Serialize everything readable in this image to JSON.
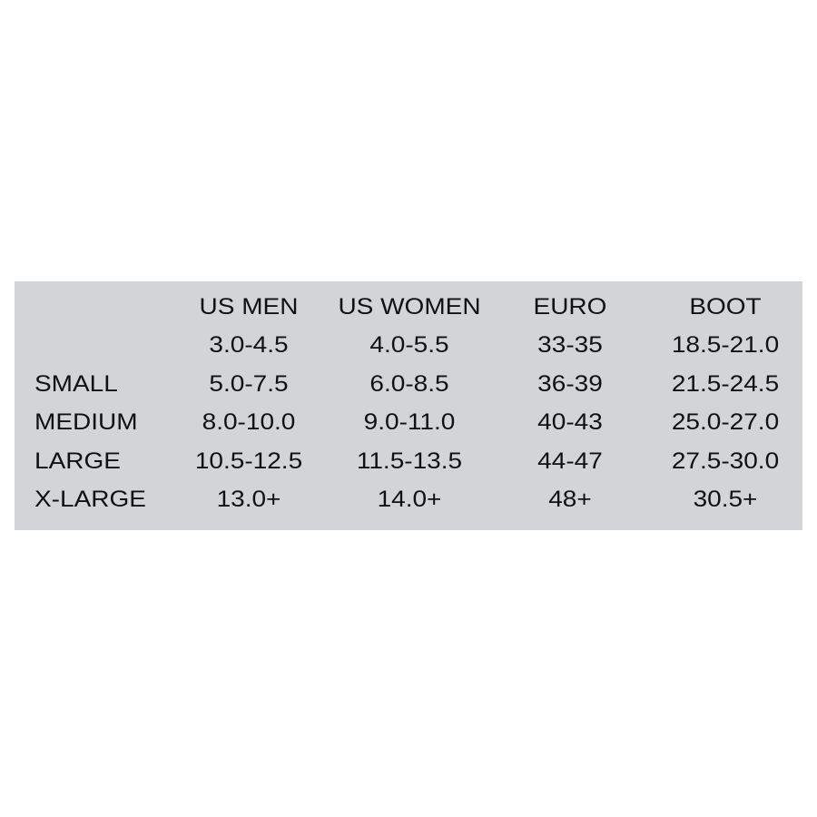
{
  "columns": [
    "US MEN",
    "US WOMEN",
    "EURO",
    "BOOT"
  ],
  "rows": [
    {
      "label": "",
      "values": [
        "3.0-4.5",
        "4.0-5.5",
        "33-35",
        "18.5-21.0"
      ]
    },
    {
      "label": "SMALL",
      "values": [
        "5.0-7.5",
        "6.0-8.5",
        "36-39",
        "21.5-24.5"
      ]
    },
    {
      "label": "MEDIUM",
      "values": [
        "8.0-10.0",
        "9.0-11.0",
        "40-43",
        "25.0-27.0"
      ]
    },
    {
      "label": "LARGE",
      "values": [
        "10.5-12.5",
        "11.5-13.5",
        "44-47",
        "27.5-30.0"
      ]
    },
    {
      "label": "X-LARGE",
      "values": [
        "13.0+",
        "14.0+",
        "48+",
        "30.5+"
      ]
    }
  ],
  "colors": {
    "panel": "#d3d4d6",
    "text": "#111111"
  }
}
